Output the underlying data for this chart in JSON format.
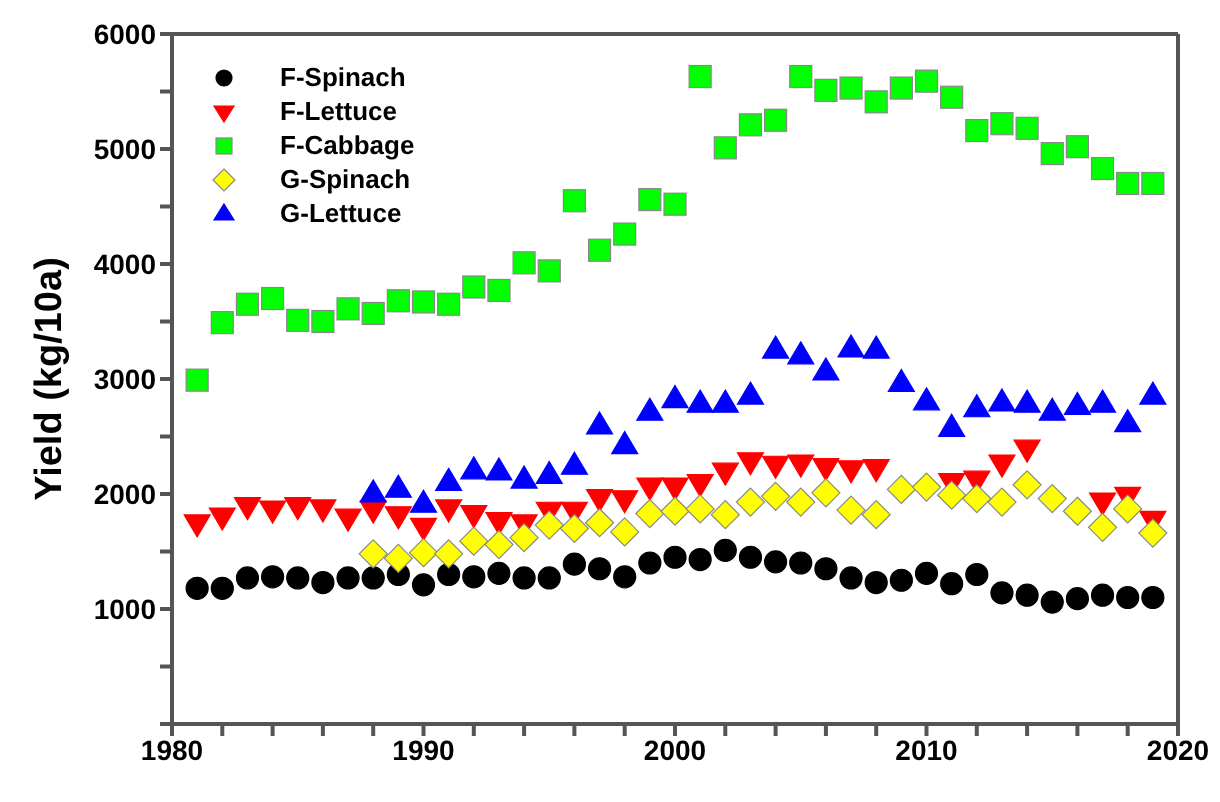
{
  "chart_data": {
    "type": "scatter",
    "ylabel": "Yield (kg/10a)",
    "x": [
      1981,
      1982,
      1983,
      1984,
      1985,
      1986,
      1987,
      1988,
      1989,
      1990,
      1991,
      1992,
      1993,
      1994,
      1995,
      1996,
      1997,
      1998,
      1999,
      2000,
      2001,
      2002,
      2003,
      2004,
      2005,
      2006,
      2007,
      2008,
      2009,
      2010,
      2011,
      2012,
      2013,
      2014,
      2015,
      2016,
      2017,
      2018,
      2019
    ],
    "xlim": [
      1980,
      2020
    ],
    "xticks": [
      1980,
      {
        "value": 1982,
        "label": null
      },
      {
        "value": 1984,
        "label": null
      },
      {
        "value": 1986,
        "label": null
      },
      {
        "value": 1988,
        "label": null
      },
      1990,
      {
        "value": 1992,
        "label": null
      },
      {
        "value": 1994,
        "label": null
      },
      {
        "value": 1996,
        "label": null
      },
      {
        "value": 1998,
        "label": null
      },
      2000,
      {
        "value": 2002,
        "label": null
      },
      {
        "value": 2004,
        "label": null
      },
      {
        "value": 2006,
        "label": null
      },
      {
        "value": 2008,
        "label": null
      },
      2010,
      {
        "value": 2012,
        "label": null
      },
      {
        "value": 2014,
        "label": null
      },
      {
        "value": 2016,
        "label": null
      },
      {
        "value": 2018,
        "label": null
      },
      2020
    ],
    "ylim": [
      0,
      6000
    ],
    "yticks": [
      {
        "value": 0,
        "label": null
      },
      {
        "value": 500,
        "label": null
      },
      1000,
      {
        "value": 1500,
        "label": null
      },
      2000,
      {
        "value": 2500,
        "label": null
      },
      3000,
      {
        "value": 3500,
        "label": null
      },
      4000,
      {
        "value": 4500,
        "label": null
      },
      5000,
      {
        "value": 5500,
        "label": null
      },
      6000
    ],
    "legend": "top left",
    "grid": false,
    "series": [
      {
        "name": "F-Spinach",
        "color": "#000000",
        "marker": "circle",
        "values": [
          1180,
          1180,
          1270,
          1280,
          1270,
          1230,
          1270,
          1270,
          1300,
          1210,
          1300,
          1280,
          1310,
          1270,
          1270,
          1390,
          1350,
          1280,
          1400,
          1450,
          1430,
          1510,
          1450,
          1410,
          1400,
          1350,
          1270,
          1230,
          1250,
          1310,
          1220,
          1300,
          1140,
          1120,
          1060,
          1090,
          1120,
          1100,
          1100
        ]
      },
      {
        "name": "F-Lettuce",
        "color": "#ff0000",
        "marker": "triangle-down",
        "values": [
          1740,
          1800,
          1890,
          1860,
          1890,
          1870,
          1790,
          1860,
          1810,
          1710,
          1870,
          1820,
          1760,
          1740,
          1850,
          1850,
          1960,
          1950,
          2060,
          2060,
          2090,
          2190,
          2280,
          2250,
          2260,
          2230,
          2210,
          2220,
          null,
          null,
          2100,
          2120,
          2260,
          2390,
          null,
          null,
          1930,
          1980,
          1770
        ]
      },
      {
        "name": "F-Cabbage",
        "color": "#00ff00",
        "marker": "square",
        "values": [
          2990,
          3490,
          3650,
          3700,
          3510,
          3500,
          3610,
          3570,
          3680,
          3670,
          3650,
          3800,
          3770,
          4010,
          3940,
          4550,
          4120,
          4260,
          4560,
          4520,
          5630,
          5010,
          5210,
          5250,
          5630,
          5510,
          5530,
          5410,
          5530,
          5590,
          5450,
          5160,
          5220,
          5180,
          4960,
          5020,
          4830,
          4700,
          4700
        ]
      },
      {
        "name": "G-Spinach",
        "color": "#ffff00",
        "marker": "diamond",
        "values": [
          null,
          null,
          null,
          null,
          null,
          null,
          null,
          1480,
          1440,
          1490,
          1480,
          1590,
          1560,
          1620,
          1730,
          1700,
          1750,
          1670,
          1830,
          1850,
          1870,
          1820,
          1930,
          1980,
          1930,
          2010,
          1860,
          1820,
          2040,
          2060,
          1990,
          1960,
          1930,
          2080,
          1960,
          1850,
          1710,
          1870,
          1660
        ]
      },
      {
        "name": "G-Lettuce",
        "color": "#0000ff",
        "marker": "triangle",
        "values": [
          null,
          null,
          null,
          null,
          null,
          null,
          null,
          2010,
          2050,
          1920,
          2110,
          2210,
          2200,
          2130,
          2170,
          2250,
          2600,
          2430,
          2720,
          2830,
          2790,
          2790,
          2860,
          3260,
          3210,
          3070,
          3270,
          3260,
          2970,
          2810,
          2580,
          2750,
          2800,
          2790,
          2720,
          2770,
          2790,
          2620,
          2860
        ]
      }
    ]
  }
}
